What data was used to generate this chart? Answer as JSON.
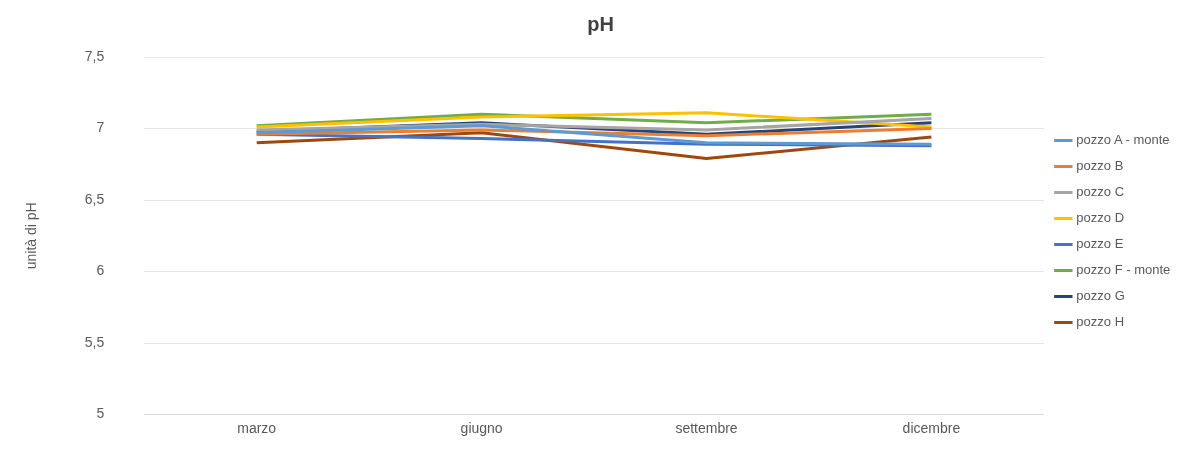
{
  "chart_data": {
    "type": "line",
    "title": "pH",
    "ylabel": "unità di pH",
    "categories": [
      "marzo",
      "giugno",
      "settembre",
      "dicembre"
    ],
    "ylim": [
      5,
      7.5
    ],
    "yticks": [
      {
        "value": 5,
        "label": "5"
      },
      {
        "value": 5.5,
        "label": "5,5"
      },
      {
        "value": 6,
        "label": "6"
      },
      {
        "value": 6.5,
        "label": "6,5"
      },
      {
        "value": 7,
        "label": "7"
      },
      {
        "value": 7.5,
        "label": "7,5"
      }
    ],
    "grid": "y",
    "legend": "right",
    "marker": "none",
    "series": [
      {
        "name": "pozzo A - monte",
        "color": "#5b9bd5",
        "values": [
          6.97,
          7.02,
          6.9,
          6.89
        ]
      },
      {
        "name": "pozzo B",
        "color": "#ed7d31",
        "values": [
          6.96,
          6.99,
          6.95,
          7.0
        ]
      },
      {
        "name": "pozzo C",
        "color": "#a5a5a5",
        "values": [
          6.99,
          7.03,
          6.99,
          7.07
        ]
      },
      {
        "name": "pozzo D",
        "color": "#ffc000",
        "values": [
          7.01,
          7.08,
          7.11,
          7.01
        ]
      },
      {
        "name": "pozzo E",
        "color": "#4472c4",
        "values": [
          6.96,
          6.93,
          6.89,
          6.88
        ]
      },
      {
        "name": "pozzo F - monte",
        "color": "#70ad47",
        "values": [
          7.02,
          7.1,
          7.04,
          7.1
        ]
      },
      {
        "name": "pozzo G",
        "color": "#264478",
        "values": [
          6.98,
          7.04,
          6.96,
          7.04
        ]
      },
      {
        "name": "pozzo H",
        "color": "#9e480e",
        "values": [
          6.9,
          6.97,
          6.79,
          6.94
        ]
      }
    ]
  }
}
